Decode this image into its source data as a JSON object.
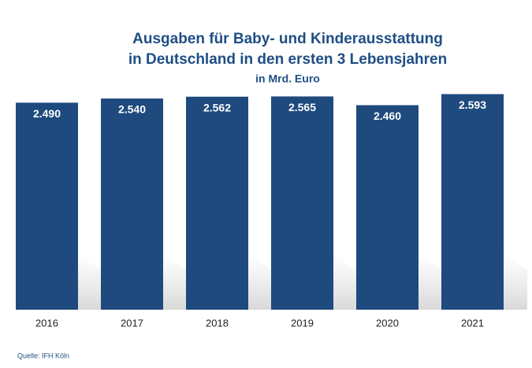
{
  "chart_data": {
    "type": "bar",
    "title": [
      "Ausgaben für Baby- und Kinderausstattung",
      "in Deutschland in den ersten 3 Lebensjahren"
    ],
    "subtitle": "in Mrd. Euro",
    "categories": [
      "2016",
      "2017",
      "2018",
      "2019",
      "2020",
      "2021"
    ],
    "values": [
      2490,
      2540,
      2562,
      2565,
      2460,
      2593
    ],
    "value_labels": [
      "2.490",
      "2.540",
      "2.562",
      "2.565",
      "2.460",
      "2.593"
    ],
    "color": "#1e4a7e",
    "source": "Quelle: IFH Köln"
  }
}
